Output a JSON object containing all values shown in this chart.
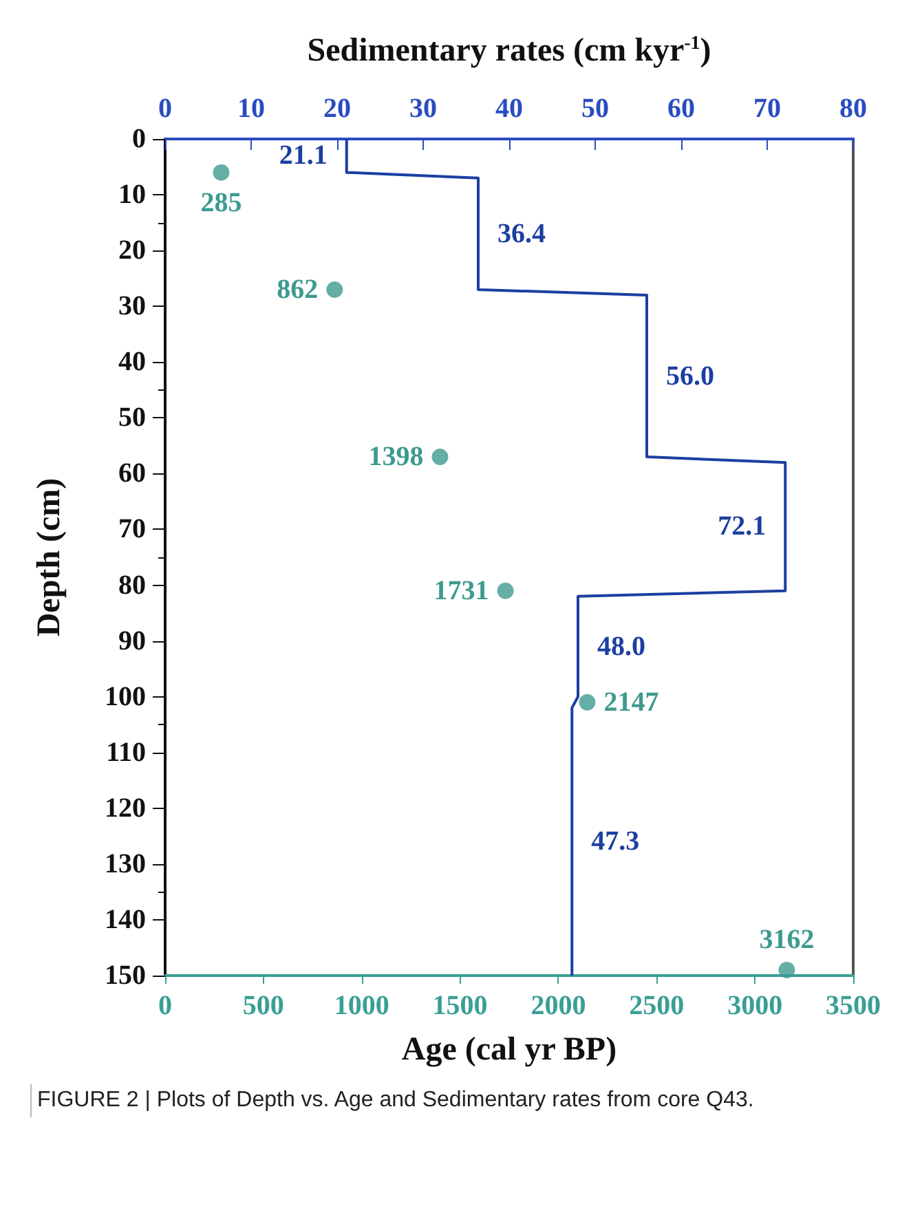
{
  "chart_data": {
    "type": "scatter",
    "x2label": "Sedimentary rates (cm kyr$^{-1}$)",
    "xlabel": "Age (cal yr BP)",
    "ylabel": "Depth (cm)",
    "annotations": [
      "FIGURE 2 | Plots of Depth vs. Age and Sedimentary rates from core Q43.",
      {
        "text": "285",
        "x": 285,
        "y": 6
      },
      {
        "text": "862",
        "x": 862,
        "y": 27
      },
      {
        "text": "1398",
        "x": 1398,
        "y": 57
      },
      {
        "text": "1731",
        "x": 1731,
        "y": 81
      },
      {
        "text": "2147",
        "x": 2147,
        "y": 101
      },
      {
        "text": "3162",
        "x": 3162,
        "y": 149
      },
      "21.1",
      "36.4",
      "56.0",
      "72.1",
      "48.0",
      "47.3"
    ],
    "xlim": [
      0,
      3500
    ],
    "xticks": [
      0,
      500,
      1000,
      1500,
      2000,
      2500,
      3000,
      3500
    ],
    "x2lim": [
      0,
      80
    ],
    "x2ticks": [
      0,
      10,
      20,
      30,
      40,
      50,
      60,
      70,
      80
    ],
    "ylim": [
      150,
      0
    ],
    "yticks": [
      0,
      10,
      20,
      30,
      40,
      50,
      60,
      70,
      80,
      90,
      100,
      110,
      120,
      130,
      140,
      150
    ],
    "grid": false,
    "marker": "circle",
    "series": [
      {
        "color": "#3d9a8f",
        "x": [
          285,
          862,
          1398,
          1731,
          2147,
          3162
        ],
        "values": [
          6,
          27,
          57,
          81,
          101,
          149
        ]
      },
      {
        "type": "line",
        "axis": "x2",
        "color": "#1c3fa0",
        "marker": "none",
        "line_style": "solid",
        "x": [
          21.1,
          21.1,
          36.4,
          36.4,
          56.0,
          56.0,
          72.1,
          72.1,
          48.0,
          48.0,
          47.3,
          47.3
        ],
        "values": [
          0,
          6,
          7,
          27,
          28,
          57,
          58,
          81,
          82,
          100,
          102,
          150
        ]
      }
    ]
  }
}
